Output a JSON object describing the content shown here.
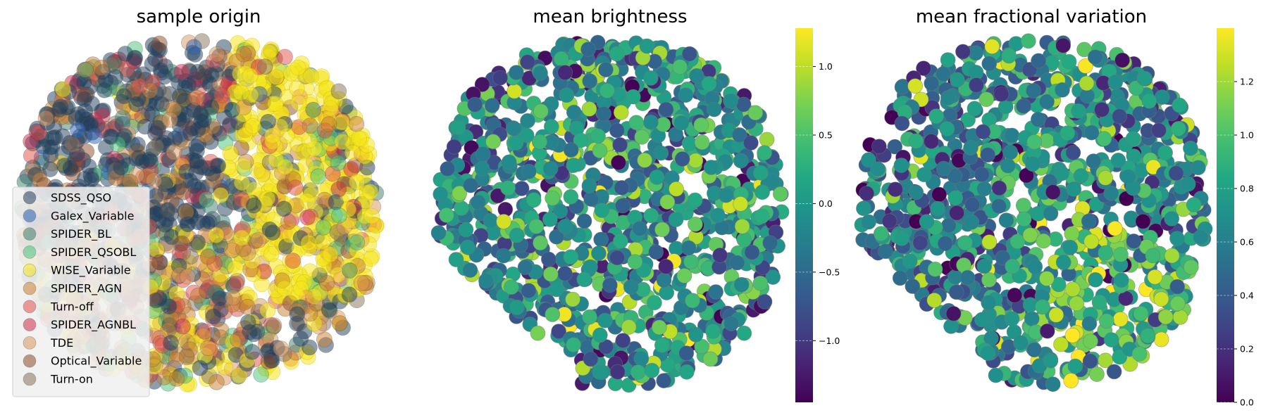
{
  "chart_data": [
    {
      "type": "scatter",
      "title": "sample origin",
      "xlabel": "",
      "ylabel": "",
      "axes": "off",
      "legend_position": "lower-left",
      "series": [
        {
          "name": "SDSS_QSO",
          "color": "#1f3d5c",
          "share": 0.34
        },
        {
          "name": "Galex_Variable",
          "color": "#2a5fb5",
          "share": 0.03
        },
        {
          "name": "SPIDER_BL",
          "color": "#3c7d6c",
          "share": 0.05
        },
        {
          "name": "SPIDER_QSOBL",
          "color": "#48c27a",
          "share": 0.06
        },
        {
          "name": "WISE_Variable",
          "color": "#f5e51b",
          "share": 0.16
        },
        {
          "name": "SPIDER_AGN",
          "color": "#c87e30",
          "share": 0.12
        },
        {
          "name": "Turn-off",
          "color": "#e0504a",
          "share": 0.07
        },
        {
          "name": "SPIDER_AGNBL",
          "color": "#d02c4a",
          "share": 0.05
        },
        {
          "name": "TDE",
          "color": "#d9955c",
          "share": 0.05
        },
        {
          "name": "Optical_Variable",
          "color": "#8c4a2a",
          "share": 0.04
        },
        {
          "name": "Turn-on",
          "color": "#86735a",
          "share": 0.03
        }
      ]
    },
    {
      "type": "scatter",
      "title": "mean brightness",
      "axes": "off",
      "colormap": "viridis",
      "colorbar": {
        "min": -1.45,
        "max": 1.28,
        "ticks": [
          -1.0,
          -0.5,
          0.0,
          0.5,
          1.0
        ],
        "tick_labels": [
          "−1.0",
          "−0.5",
          "0.0",
          "0.5",
          "1.0"
        ]
      },
      "value_summary": {
        "typical_range": [
          -0.6,
          0.4
        ],
        "center": -0.1
      }
    },
    {
      "type": "scatter",
      "title": "mean fractional variation",
      "axes": "off",
      "colormap": "viridis",
      "colorbar": {
        "min": 0.0,
        "max": 1.4,
        "ticks": [
          0.0,
          0.2,
          0.4,
          0.6,
          0.8,
          1.0,
          1.2
        ],
        "tick_labels": [
          "0.0",
          "0.2",
          "0.4",
          "0.6",
          "0.8",
          "1.0",
          "1.2"
        ]
      },
      "value_summary": {
        "typical_range": [
          0.45,
          0.95
        ],
        "center": 0.7
      }
    }
  ]
}
